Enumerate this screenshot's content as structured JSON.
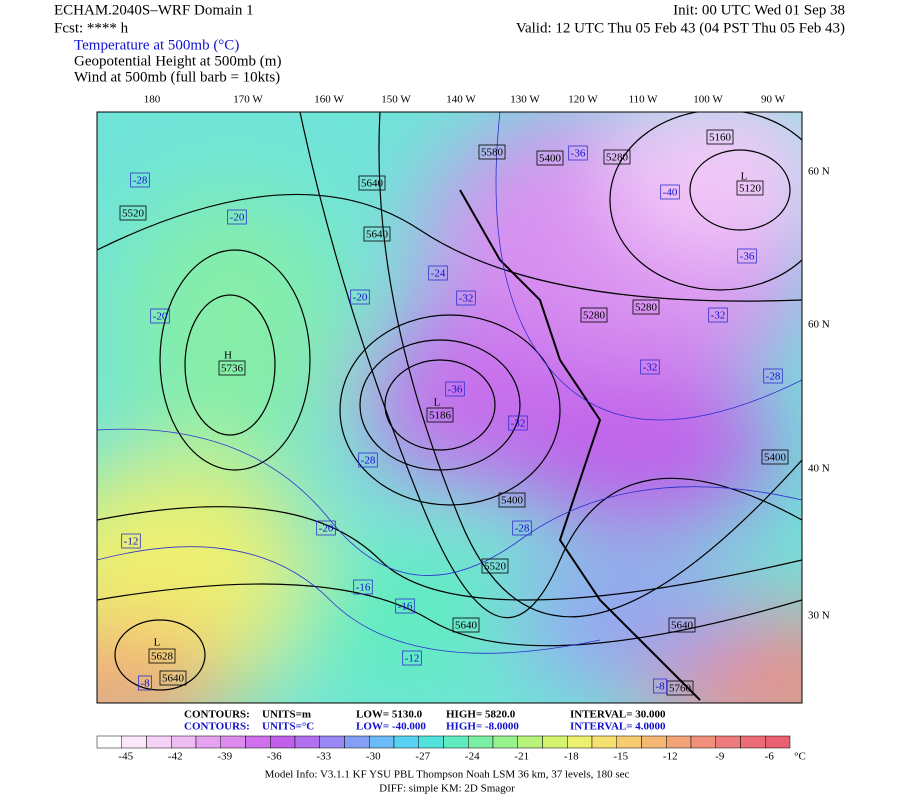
{
  "header": {
    "title": "ECHAM.2040S–WRF Domain 1",
    "fcst": "Fcst: **** h",
    "init": "Init: 00 UTC Wed 01 Sep 38",
    "valid": "Valid: 12 UTC Thu 05 Feb 43 (04 PST Thu 05 Feb 43)",
    "fields": [
      "Temperature at 500mb (°C)",
      "Geopotential Height at 500mb (m)",
      "Wind at 500mb (full barb = 10kts)"
    ]
  },
  "map": {
    "lon_labels": [
      "180",
      "170 W",
      "160 W",
      "150 W",
      "140 W",
      "130 W",
      "120 W",
      "110 W",
      "100 W",
      "90 W"
    ],
    "lat_labels": [
      "60 N",
      "60 N",
      "40 N",
      "30 N"
    ],
    "pressure_centers": [
      "L",
      "H",
      "L",
      "L"
    ],
    "height_labels": [
      "5580",
      "5400",
      "5280",
      "5160",
      "5120",
      "5640",
      "5520",
      "5640",
      "5736",
      "5186",
      "5280",
      "5280",
      "5400",
      "5400",
      "5520",
      "5640",
      "5640",
      "5628",
      "5640",
      "5760"
    ],
    "temp_labels": [
      "-28",
      "-20",
      "-20",
      "-20",
      "-24",
      "-32",
      "-36",
      "-32",
      "-32",
      "-32",
      "-36",
      "-40",
      "-36",
      "-28",
      "-28",
      "-28",
      "-20",
      "-12",
      "-16",
      "-16",
      "-12",
      "-8",
      "-8"
    ]
  },
  "contour_info": [
    [
      "CONTOURS:",
      "UNITS=m",
      "LOW=  5130.0",
      "HIGH=  5820.0",
      "INTERVAL=  30.000"
    ],
    [
      "CONTOURS:",
      "UNITS=°C",
      "LOW= -40.000",
      "HIGH= -8.0000",
      "INTERVAL=  4.0000"
    ]
  ],
  "colorbar": {
    "ticks": [
      "-45",
      "-42",
      "-39",
      "-36",
      "-33",
      "-30",
      "-27",
      "-24",
      "-21",
      "-18",
      "-15",
      "-12",
      "-9",
      "-6"
    ],
    "unit": "°C",
    "colors": [
      "#ffffff",
      "#fbe8fb",
      "#f6d2f7",
      "#efbcf3",
      "#e6a4f0",
      "#dc8cee",
      "#d070ec",
      "#c060ea",
      "#b070f0",
      "#9a88f4",
      "#84a0f6",
      "#6cbaf6",
      "#58d2f2",
      "#52e4dc",
      "#60ecc0",
      "#7af0a4",
      "#98f28c",
      "#b8f47c",
      "#d4f470",
      "#eef070",
      "#f6e070",
      "#f6cc70",
      "#f4b874",
      "#f2a478",
      "#f0907c",
      "#ee7c7c",
      "#ec6c78",
      "#ea6070"
    ]
  },
  "footer": [
    "Model Info: V3.1.1    KF     YSU PBL   Thompson     Noah LSM   36 km,    37 levels,   180 sec",
    "DIFF: simple KM: 2D Smagor"
  ]
}
